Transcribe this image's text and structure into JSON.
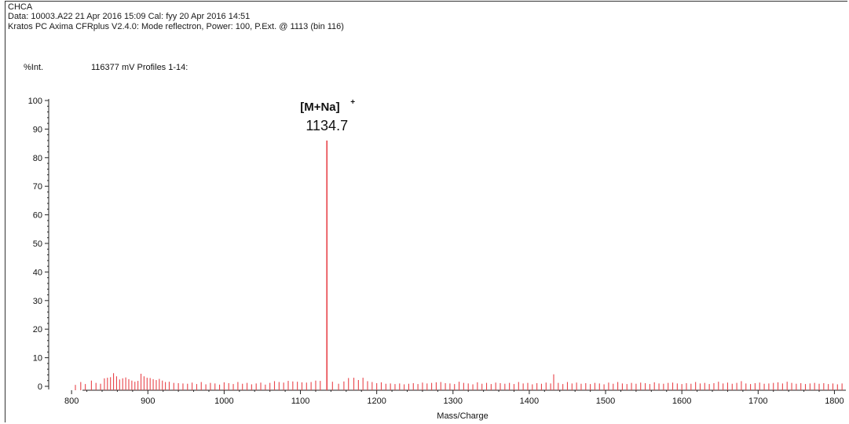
{
  "header": {
    "matrix": "CHCA",
    "data_line": "Data: 10003.A22 21 Apr 2016 15:09 Cal: fyy 20 Apr 2016 14:51",
    "instrument_line": "Kratos PC Axima CFRplus V2.4.0: Mode reflectron, Power: 100, P.Ext. @ 1113 (bin 116)",
    "intensity_label": "%Int.",
    "intensity_info": "116377 mV  Profiles 1-14:"
  },
  "chart_data": {
    "type": "bar",
    "xlabel": "Mass/Charge",
    "ylabel": "%Int.",
    "xlim": [
      770,
      1815
    ],
    "ylim": [
      0,
      100
    ],
    "x_ticks": [
      800,
      900,
      1000,
      1100,
      1200,
      1300,
      1400,
      1500,
      1600,
      1700,
      1800
    ],
    "y_ticks": [
      0,
      10,
      20,
      30,
      40,
      50,
      60,
      70,
      80,
      90,
      100
    ],
    "grid": false,
    "line_color": "#e8444a",
    "annotations": [
      {
        "ion": "[M+Na]",
        "charge": "+",
        "mz": "1134.7",
        "x": 1134.7,
        "y": 86
      }
    ],
    "peaks": {
      "x": [
        805,
        812,
        818,
        826,
        832,
        838,
        843,
        847,
        851,
        855,
        859,
        863,
        867,
        871,
        875,
        879,
        883,
        887,
        891,
        895,
        899,
        903,
        907,
        911,
        915,
        919,
        923,
        928,
        934,
        940,
        946,
        952,
        958,
        964,
        970,
        976,
        982,
        988,
        994,
        1000,
        1006,
        1012,
        1018,
        1024,
        1030,
        1036,
        1042,
        1048,
        1054,
        1060,
        1066,
        1072,
        1078,
        1084,
        1090,
        1096,
        1102,
        1108,
        1114,
        1120,
        1126,
        1134.7,
        1142,
        1150,
        1157,
        1163,
        1170,
        1176,
        1182,
        1188,
        1194,
        1200,
        1206,
        1212,
        1218,
        1224,
        1230,
        1236,
        1242,
        1248,
        1254,
        1260,
        1266,
        1272,
        1278,
        1284,
        1290,
        1296,
        1302,
        1308,
        1314,
        1320,
        1326,
        1332,
        1338,
        1344,
        1350,
        1356,
        1362,
        1368,
        1374,
        1380,
        1386,
        1392,
        1398,
        1404,
        1410,
        1416,
        1422,
        1428,
        1432,
        1438,
        1444,
        1450,
        1456,
        1462,
        1468,
        1474,
        1480,
        1486,
        1492,
        1498,
        1504,
        1510,
        1516,
        1522,
        1528,
        1534,
        1540,
        1546,
        1552,
        1558,
        1564,
        1570,
        1576,
        1582,
        1588,
        1594,
        1600,
        1606,
        1612,
        1618,
        1624,
        1630,
        1636,
        1642,
        1648,
        1654,
        1660,
        1666,
        1672,
        1678,
        1684,
        1690,
        1696,
        1702,
        1708,
        1714,
        1720,
        1726,
        1732,
        1738,
        1744,
        1750,
        1756,
        1762,
        1768,
        1774,
        1780,
        1786,
        1792,
        1798,
        1804,
        1810
      ],
      "y": [
        0.5,
        1.5,
        0.8,
        2.0,
        1.2,
        0.9,
        2.8,
        3.0,
        3.2,
        4.6,
        3.5,
        2.4,
        2.8,
        3.1,
        2.5,
        2.0,
        1.6,
        1.9,
        4.4,
        3.5,
        3.0,
        2.9,
        2.5,
        2.2,
        2.6,
        2.0,
        1.5,
        1.6,
        1.2,
        1.1,
        1.0,
        0.9,
        1.3,
        0.8,
        1.5,
        0.7,
        1.2,
        1.0,
        0.6,
        1.4,
        1.1,
        0.8,
        1.5,
        0.9,
        1.2,
        0.7,
        1.0,
        1.3,
        0.6,
        1.2,
        1.8,
        1.5,
        1.3,
        1.9,
        1.7,
        1.6,
        1.4,
        1.3,
        1.5,
        2.0,
        1.9,
        86,
        1.6,
        0.9,
        1.7,
        2.9,
        3.0,
        2.2,
        3.0,
        1.8,
        1.5,
        1.1,
        1.4,
        0.9,
        1.0,
        0.8,
        1.0,
        0.7,
        0.9,
        1.1,
        0.8,
        1.3,
        1.0,
        1.2,
        1.4,
        1.5,
        1.1,
        1.0,
        0.8,
        1.6,
        1.2,
        1.0,
        0.7,
        1.4,
        0.9,
        1.2,
        0.8,
        1.3,
        1.1,
        0.9,
        1.2,
        0.8,
        1.5,
        1.0,
        1.2,
        0.7,
        1.1,
        0.9,
        1.3,
        1.0,
        4.2,
        1.2,
        0.8,
        1.5,
        1.0,
        1.3,
        0.9,
        1.1,
        0.8,
        1.2,
        1.0,
        0.7,
        1.3,
        0.9,
        1.5,
        1.0,
        0.8,
        1.2,
        0.9,
        1.3,
        1.1,
        0.8,
        1.4,
        1.0,
        0.9,
        1.2,
        1.3,
        1.0,
        0.8,
        1.1,
        0.9,
        1.5,
        1.0,
        1.2,
        0.8,
        1.1,
        1.6,
        1.0,
        1.3,
        0.9,
        1.2,
        1.8,
        1.0,
        0.8,
        1.1,
        1.3,
        0.9,
        1.0,
        1.2,
        1.4,
        1.0,
        1.6,
        1.2,
        0.9,
        1.1,
        0.8,
        1.0,
        1.2,
        0.9,
        1.1,
        0.8,
        1.0,
        0.7,
        1.0
      ]
    }
  }
}
